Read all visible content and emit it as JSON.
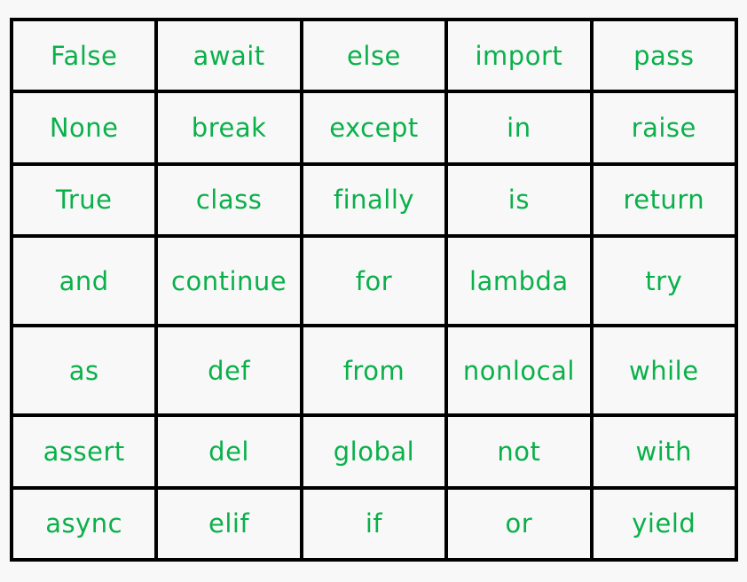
{
  "rows": [
    [
      "False",
      "await",
      "else",
      "import",
      "pass"
    ],
    [
      "None",
      "break",
      "except",
      "in",
      "raise"
    ],
    [
      "True",
      "class",
      "finally",
      "is",
      "return"
    ],
    [
      "and",
      "continue",
      "for",
      "lambda",
      "try"
    ],
    [
      "as",
      "def",
      "from",
      "nonlocal",
      "while"
    ],
    [
      "assert",
      "del",
      "global",
      "not",
      "with"
    ],
    [
      "async",
      "elif",
      "if",
      "or",
      "yield"
    ]
  ],
  "colors": {
    "text": "#0ab04a",
    "border": "#000000",
    "background": "#f8f8f8"
  }
}
